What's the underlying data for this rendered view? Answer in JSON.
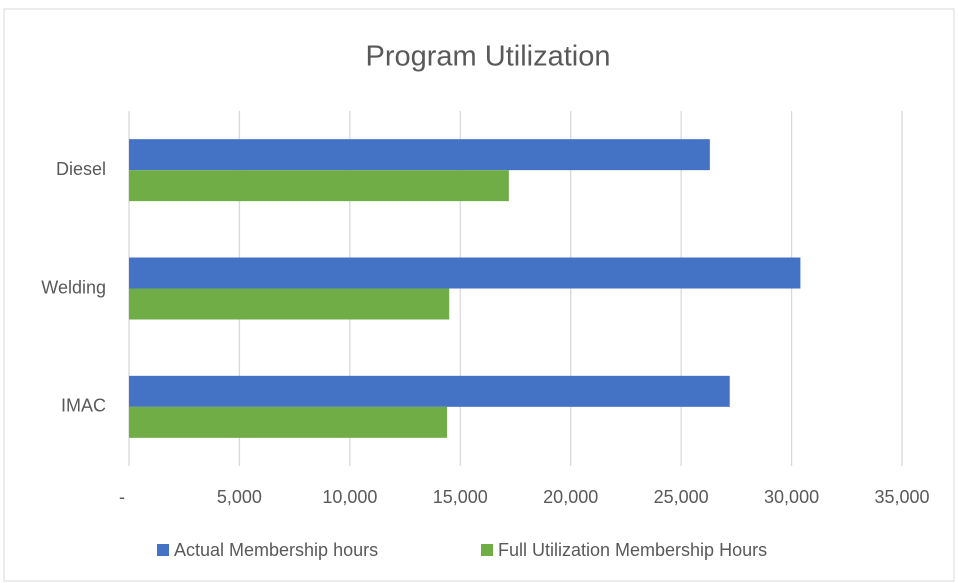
{
  "chart_data": {
    "type": "hbar",
    "title": "Program Utilization",
    "categories": [
      "Diesel",
      "Welding",
      "IMAC"
    ],
    "series": [
      {
        "name": "Actual Membership hours",
        "color": "#4472c4",
        "values": [
          26300,
          30400,
          27200
        ]
      },
      {
        "name": "Full Utilization Membership Hours",
        "color": "#70ad47",
        "values": [
          17200,
          14500,
          14400
        ]
      }
    ],
    "xlim": [
      0,
      35000
    ],
    "xticks": [
      {
        "value": 0,
        "label": "-"
      },
      {
        "value": 5000,
        "label": "5,000"
      },
      {
        "value": 10000,
        "label": "10,000"
      },
      {
        "value": 15000,
        "label": "15,000"
      },
      {
        "value": 20000,
        "label": "20,000"
      },
      {
        "value": 25000,
        "label": "25,000"
      },
      {
        "value": 30000,
        "label": "30,000"
      },
      {
        "value": 35000,
        "label": "35,000"
      }
    ],
    "grid": true,
    "legend": "bottom"
  }
}
